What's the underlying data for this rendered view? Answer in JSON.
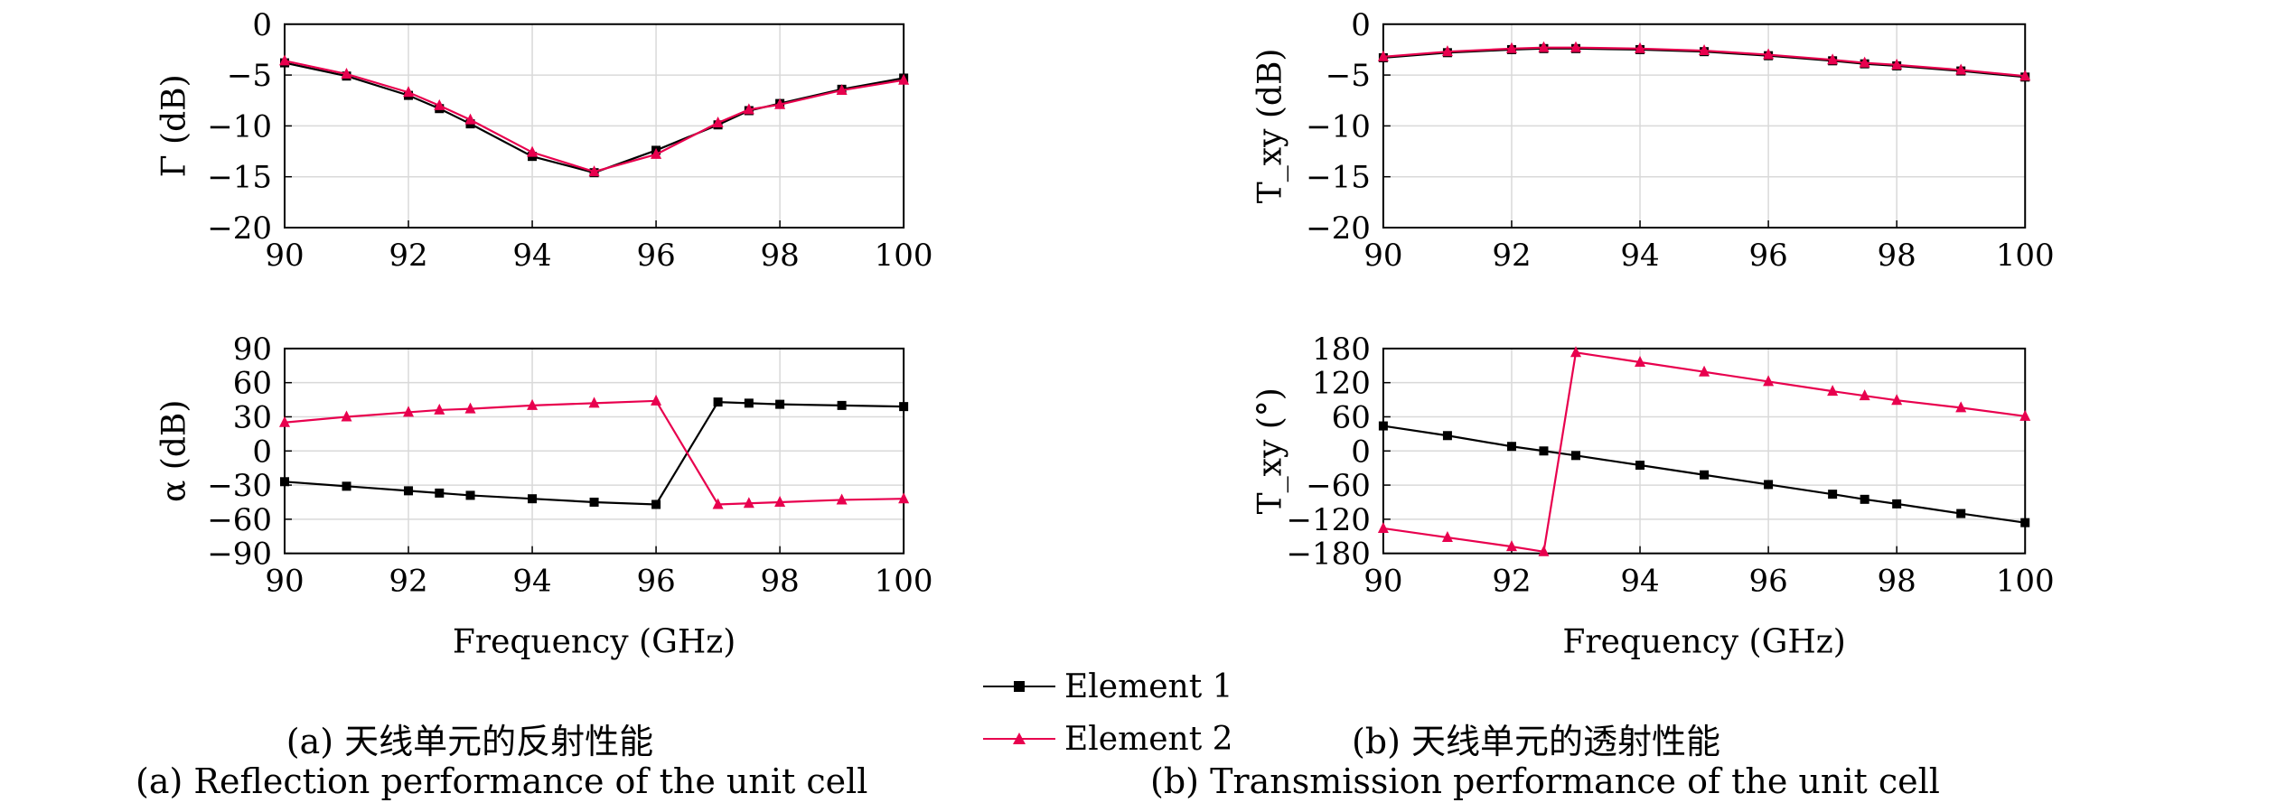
{
  "chart_data": [
    {
      "id": "a-top",
      "type": "line",
      "ylabel": "Γ (dB)",
      "xlabel": "",
      "xlim": [
        90,
        100
      ],
      "ylim": [
        -20,
        0
      ],
      "xticks": [
        "90",
        "92",
        "94",
        "96",
        "98",
        "100"
      ],
      "yticks": [
        "0",
        "−5",
        "−10",
        "−15",
        "−20"
      ],
      "x": [
        90,
        91,
        92,
        92.5,
        93,
        94,
        95,
        96,
        97,
        97.5,
        98,
        99,
        100
      ],
      "series": [
        {
          "name": "Element 1",
          "color": "#000000",
          "marker": "square",
          "values": [
            -3.8,
            -5.1,
            -7.0,
            -8.3,
            -9.8,
            -13.0,
            -14.6,
            -12.4,
            -9.9,
            -8.5,
            -7.8,
            -6.4,
            -5.3
          ]
        },
        {
          "name": "Element 2",
          "color": "#e8004e",
          "marker": "triangle",
          "values": [
            -3.6,
            -4.9,
            -6.7,
            -8.0,
            -9.4,
            -12.6,
            -14.5,
            -12.8,
            -9.7,
            -8.4,
            -7.9,
            -6.5,
            -5.5
          ]
        }
      ]
    },
    {
      "id": "a-bottom",
      "type": "line",
      "ylabel": "α (dB)",
      "xlabel": "Frequency (GHz)",
      "xlim": [
        90,
        100
      ],
      "ylim": [
        -90,
        90
      ],
      "xticks": [
        "90",
        "92",
        "94",
        "96",
        "98",
        "100"
      ],
      "yticks": [
        "90",
        "60",
        "30",
        "0",
        "−30",
        "−60",
        "−90"
      ],
      "x": [
        90,
        91,
        92,
        92.5,
        93,
        94,
        95,
        96,
        97,
        97.5,
        98,
        99,
        100
      ],
      "series": [
        {
          "name": "Element 1",
          "color": "#000000",
          "marker": "square",
          "values": [
            -27,
            -31,
            -35,
            -37,
            -39,
            -42,
            -45,
            -47,
            43,
            42,
            41,
            40,
            39
          ]
        },
        {
          "name": "Element 2",
          "color": "#e8004e",
          "marker": "triangle",
          "values": [
            25,
            30,
            34,
            36,
            37,
            40,
            42,
            44,
            -47,
            -46,
            -45,
            -43,
            -42
          ]
        }
      ]
    },
    {
      "id": "b-top",
      "type": "line",
      "ylabel": "T_xy (dB)",
      "xlabel": "",
      "xlim": [
        90,
        100
      ],
      "ylim": [
        -20,
        0
      ],
      "xticks": [
        "90",
        "92",
        "94",
        "96",
        "98",
        "100"
      ],
      "yticks": [
        "0",
        "−5",
        "−10",
        "−15",
        "−20"
      ],
      "x": [
        90,
        91,
        92,
        92.5,
        93,
        94,
        95,
        96,
        97,
        97.5,
        98,
        99,
        100
      ],
      "series": [
        {
          "name": "Element 1",
          "color": "#000000",
          "marker": "square",
          "values": [
            -3.3,
            -2.8,
            -2.5,
            -2.4,
            -2.4,
            -2.5,
            -2.7,
            -3.1,
            -3.6,
            -3.9,
            -4.1,
            -4.6,
            -5.2
          ]
        },
        {
          "name": "Element 2",
          "color": "#e8004e",
          "marker": "triangle",
          "values": [
            -3.2,
            -2.7,
            -2.4,
            -2.3,
            -2.3,
            -2.4,
            -2.6,
            -3.0,
            -3.5,
            -3.8,
            -4.0,
            -4.5,
            -5.1
          ]
        }
      ]
    },
    {
      "id": "b-bottom",
      "type": "line",
      "ylabel": "T_xy (°)",
      "xlabel": "Frequency (GHz)",
      "xlim": [
        90,
        100
      ],
      "ylim": [
        -180,
        180
      ],
      "xticks": [
        "90",
        "92",
        "94",
        "96",
        "98",
        "100"
      ],
      "yticks": [
        "180",
        "120",
        "60",
        "0",
        "−60",
        "−120",
        "−180"
      ],
      "x": [
        90,
        91,
        92,
        92.5,
        93,
        94,
        95,
        96,
        97,
        97.5,
        98,
        99,
        100
      ],
      "series": [
        {
          "name": "Element 1",
          "color": "#000000",
          "marker": "square",
          "values": [
            44,
            27,
            8,
            0,
            -8,
            -25,
            -42,
            -59,
            -76,
            -85,
            -93,
            -110,
            -126
          ]
        },
        {
          "name": "Element 2",
          "color": "#e8004e",
          "marker": "triangle",
          "values": [
            -136,
            -152,
            -168,
            -177,
            173,
            156,
            139,
            122,
            105,
            97,
            89,
            76,
            61
          ]
        }
      ]
    }
  ],
  "legend": {
    "items": [
      "Element 1",
      "Element 2"
    ]
  },
  "captions": {
    "a_cn": "(a) 天线单元的反射性能",
    "a_en": "(a) Reflection performance of the unit cell",
    "b_cn": "(b) 天线单元的透射性能",
    "b_en": "(b) Transmission performance of the unit cell"
  }
}
